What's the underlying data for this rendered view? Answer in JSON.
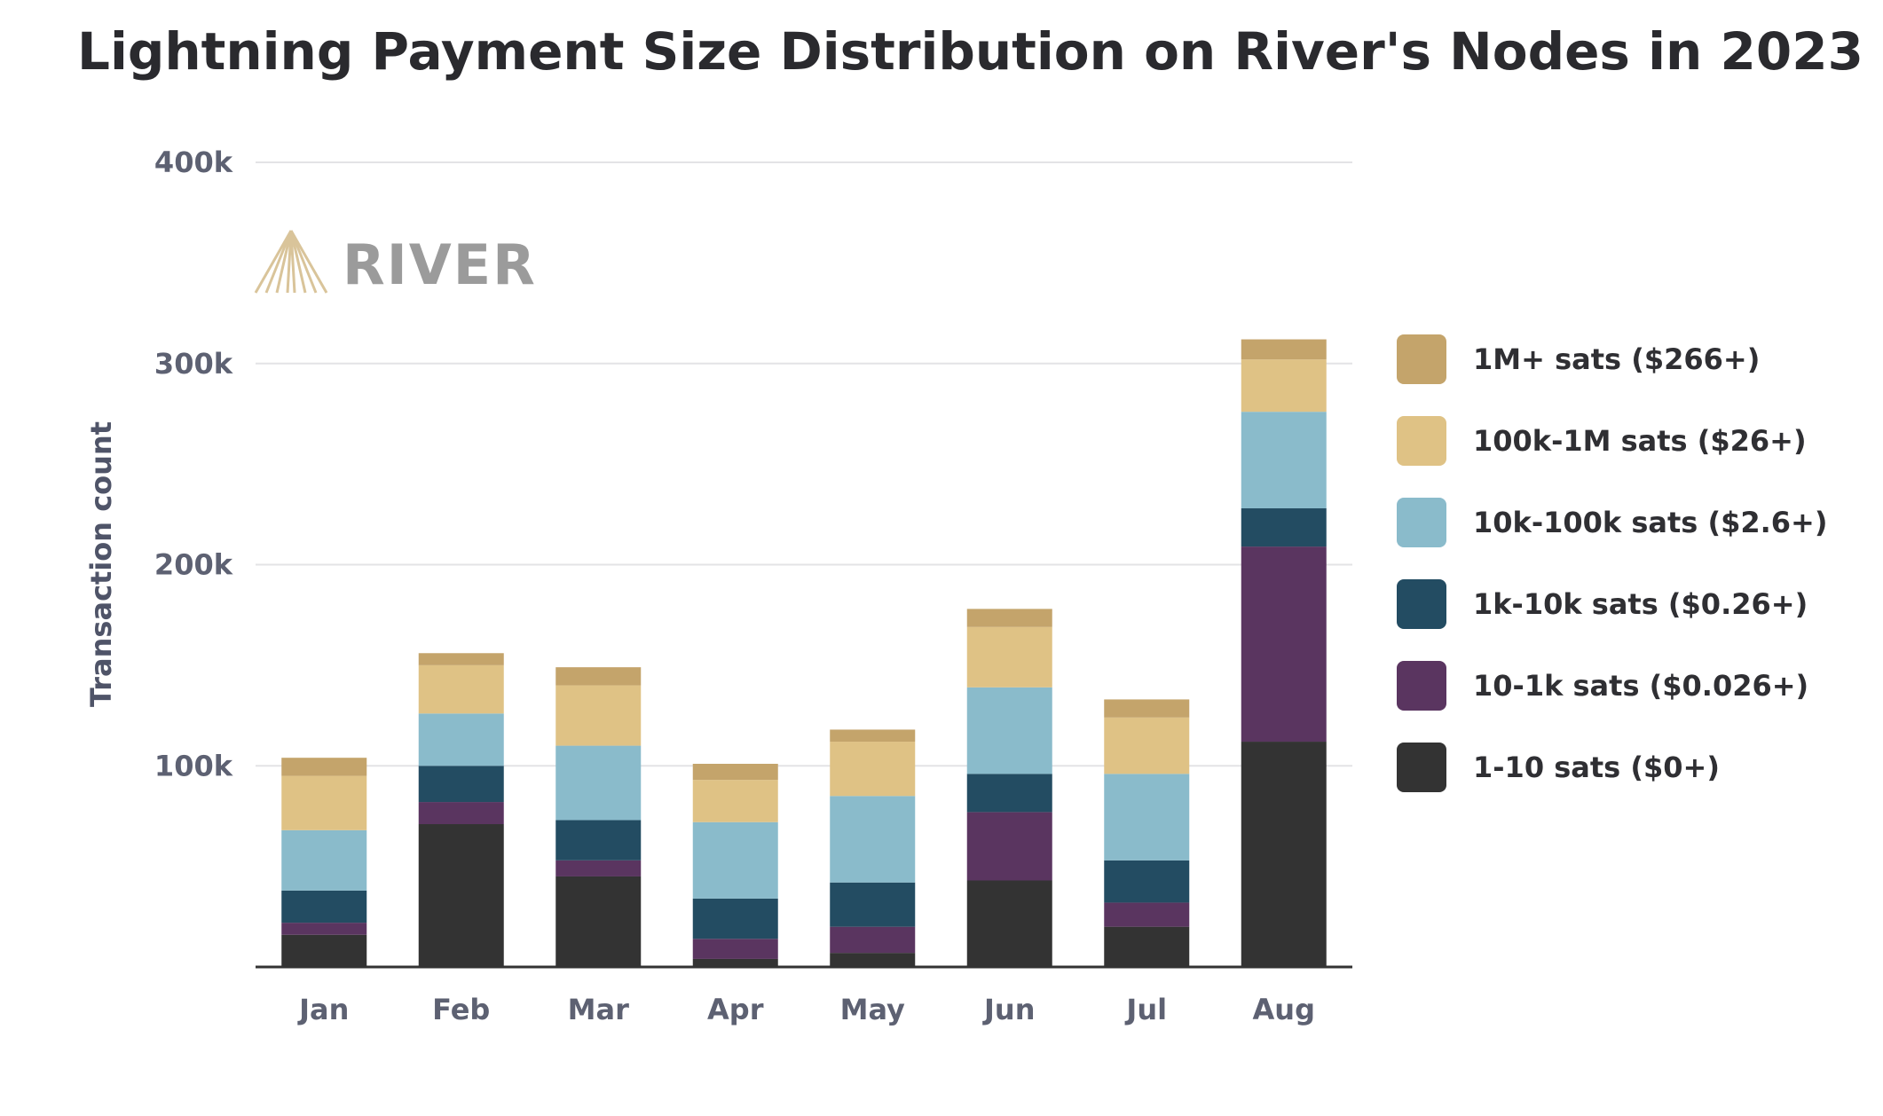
{
  "title": "Lightning Payment Size Distribution on River's Nodes in 2023",
  "logo": {
    "text": "RIVER"
  },
  "chart_data": {
    "type": "bar",
    "stacked": true,
    "title": "Lightning Payment Size Distribution on River's Nodes in 2023",
    "xlabel": "",
    "ylabel": "Transaction count",
    "ylim": [
      0,
      400000
    ],
    "y_ticks": [
      100000,
      200000,
      300000,
      400000
    ],
    "y_tick_labels": [
      "100k",
      "200k",
      "300k",
      "400k"
    ],
    "grid": true,
    "legend_position": "right",
    "categories": [
      "Jan",
      "Feb",
      "Mar",
      "Apr",
      "May",
      "Jun",
      "Jul",
      "Aug"
    ],
    "series": [
      {
        "name": "1-10 sats ($0+)",
        "color": "#333333",
        "values": [
          16000,
          71000,
          45000,
          4000,
          7000,
          43000,
          20000,
          112000
        ]
      },
      {
        "name": "10-1k sats ($0.026+)",
        "color": "#5a3560",
        "values": [
          6000,
          11000,
          8000,
          10000,
          13000,
          34000,
          12000,
          97000
        ]
      },
      {
        "name": "1k-10k sats ($0.26+)",
        "color": "#234c62",
        "values": [
          16000,
          18000,
          20000,
          20000,
          22000,
          19000,
          21000,
          19000
        ]
      },
      {
        "name": "10k-100k sats ($2.6+)",
        "color": "#8abbcb",
        "values": [
          30000,
          26000,
          37000,
          38000,
          43000,
          43000,
          43000,
          48000
        ]
      },
      {
        "name": "100k-1M sats ($26+)",
        "color": "#dfc285",
        "values": [
          27000,
          24000,
          30000,
          21000,
          27000,
          30000,
          28000,
          26000
        ]
      },
      {
        "name": "1M+ sats ($266+)",
        "color": "#c4a46b",
        "values": [
          9000,
          6000,
          9000,
          8000,
          6000,
          9000,
          9000,
          10000
        ]
      }
    ]
  }
}
